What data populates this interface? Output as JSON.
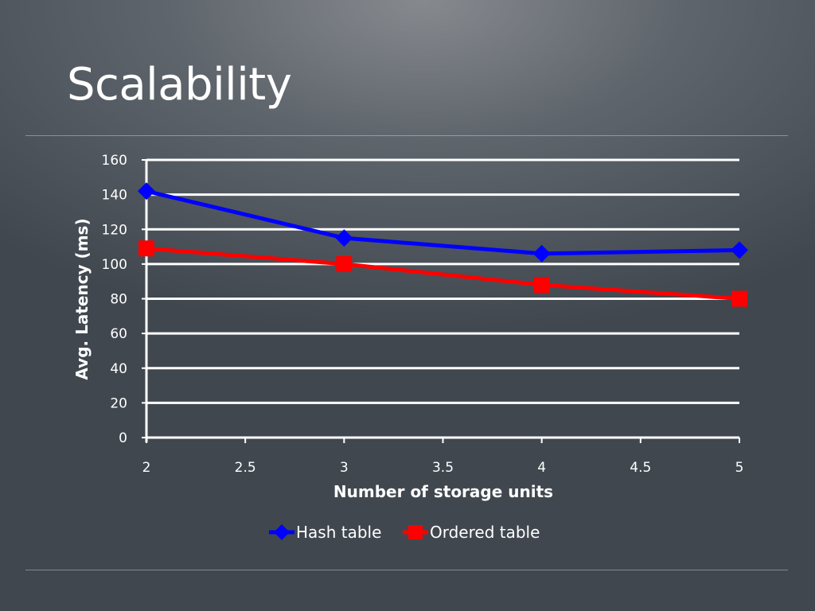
{
  "slide": {
    "title": "Scalability"
  },
  "chart_data": {
    "type": "line",
    "title": "",
    "xlabel": "Number of storage units",
    "ylabel": "Avg. Latency (ms)",
    "xlim": [
      2,
      5
    ],
    "ylim": [
      0,
      160
    ],
    "xticks": [
      2,
      2.5,
      3,
      3.5,
      4,
      4.5,
      5
    ],
    "yticks": [
      0,
      20,
      40,
      60,
      80,
      100,
      120,
      140,
      160
    ],
    "grid": "horizontal",
    "legend": "bottom",
    "series": [
      {
        "name": "Hash table",
        "color": "#0000ff",
        "marker": "diamond",
        "x": [
          2,
          3,
          4,
          5
        ],
        "y": [
          142,
          115,
          106,
          108
        ]
      },
      {
        "name": "Ordered table",
        "color": "#ff0000",
        "marker": "square",
        "x": [
          2,
          3,
          4,
          5
        ],
        "y": [
          109,
          100,
          88,
          80
        ]
      }
    ]
  }
}
